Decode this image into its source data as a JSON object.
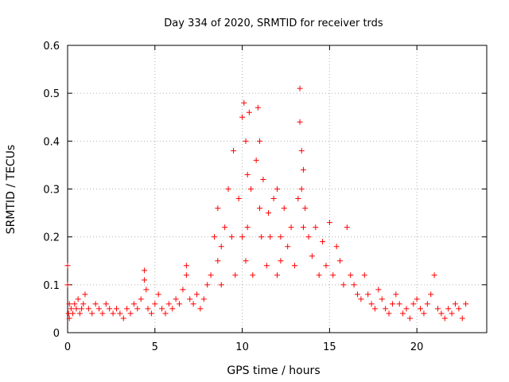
{
  "chart_data": {
    "type": "scatter",
    "title": "Day 334 of 2020, SRMTID for receiver trds",
    "xlabel": "GPS time / hours",
    "ylabel": "SRMTID / TECUs",
    "xlim": [
      0,
      24
    ],
    "ylim": [
      0,
      0.6
    ],
    "x_ticks": [
      0,
      5,
      10,
      15,
      20
    ],
    "y_ticks": [
      0,
      0.1,
      0.2,
      0.3,
      0.4,
      0.5,
      0.6
    ],
    "x_tick_labels": [
      "0",
      "5",
      "10",
      "15",
      "20"
    ],
    "y_tick_labels": [
      "0",
      "0.1",
      "0.2",
      "0.3",
      "0.4",
      "0.5",
      "0.6"
    ],
    "grid": true,
    "marker": "+",
    "series": [
      {
        "name": "SRMTID",
        "color": "#ff0000",
        "x": [
          0.0,
          0.0,
          0.05,
          0.1,
          0.1,
          0.2,
          0.3,
          0.4,
          0.5,
          0.6,
          0.7,
          0.8,
          0.9,
          1.0,
          1.2,
          1.4,
          1.6,
          1.8,
          2.0,
          2.2,
          2.4,
          2.6,
          2.8,
          3.0,
          3.2,
          3.4,
          3.6,
          3.8,
          4.0,
          4.2,
          4.4,
          4.4,
          4.5,
          4.6,
          4.8,
          5.0,
          5.2,
          5.4,
          5.6,
          5.8,
          6.0,
          6.2,
          6.4,
          6.6,
          6.8,
          6.8,
          7.0,
          7.2,
          7.4,
          7.6,
          7.8,
          8.0,
          8.2,
          8.4,
          8.6,
          8.6,
          8.8,
          8.8,
          9.0,
          9.2,
          9.4,
          9.5,
          9.6,
          9.8,
          10.0,
          10.0,
          10.1,
          10.2,
          10.2,
          10.3,
          10.3,
          10.4,
          10.5,
          10.6,
          10.8,
          10.9,
          11.0,
          11.0,
          11.1,
          11.2,
          11.4,
          11.5,
          11.6,
          11.8,
          12.0,
          12.0,
          12.2,
          12.2,
          12.4,
          12.6,
          12.8,
          13.0,
          13.2,
          13.3,
          13.3,
          13.4,
          13.4,
          13.5,
          13.5,
          13.6,
          13.8,
          14.0,
          14.2,
          14.4,
          14.6,
          14.8,
          15.0,
          15.2,
          15.4,
          15.6,
          15.8,
          16.0,
          16.2,
          16.4,
          16.6,
          16.8,
          17.0,
          17.2,
          17.4,
          17.6,
          17.8,
          18.0,
          18.2,
          18.4,
          18.6,
          18.8,
          19.0,
          19.2,
          19.4,
          19.6,
          19.8,
          20.0,
          20.2,
          20.4,
          20.6,
          20.8,
          21.0,
          21.2,
          21.4,
          21.6,
          21.8,
          22.0,
          22.2,
          22.4,
          22.6,
          22.8
        ],
        "y": [
          0.14,
          0.1,
          0.04,
          0.06,
          0.03,
          0.05,
          0.04,
          0.06,
          0.05,
          0.07,
          0.04,
          0.05,
          0.06,
          0.08,
          0.05,
          0.04,
          0.06,
          0.05,
          0.04,
          0.06,
          0.05,
          0.04,
          0.05,
          0.04,
          0.03,
          0.05,
          0.04,
          0.06,
          0.05,
          0.07,
          0.13,
          0.11,
          0.09,
          0.05,
          0.04,
          0.06,
          0.08,
          0.05,
          0.04,
          0.06,
          0.05,
          0.07,
          0.06,
          0.09,
          0.14,
          0.12,
          0.07,
          0.06,
          0.08,
          0.05,
          0.07,
          0.1,
          0.12,
          0.2,
          0.26,
          0.15,
          0.18,
          0.1,
          0.22,
          0.3,
          0.2,
          0.38,
          0.12,
          0.28,
          0.45,
          0.2,
          0.48,
          0.4,
          0.15,
          0.33,
          0.22,
          0.46,
          0.3,
          0.12,
          0.36,
          0.47,
          0.4,
          0.26,
          0.2,
          0.32,
          0.14,
          0.25,
          0.2,
          0.28,
          0.3,
          0.12,
          0.2,
          0.15,
          0.26,
          0.18,
          0.22,
          0.14,
          0.28,
          0.51,
          0.44,
          0.38,
          0.3,
          0.34,
          0.22,
          0.26,
          0.2,
          0.16,
          0.22,
          0.12,
          0.19,
          0.14,
          0.23,
          0.12,
          0.18,
          0.15,
          0.1,
          0.22,
          0.12,
          0.1,
          0.08,
          0.07,
          0.12,
          0.08,
          0.06,
          0.05,
          0.09,
          0.07,
          0.05,
          0.04,
          0.06,
          0.08,
          0.06,
          0.04,
          0.05,
          0.03,
          0.06,
          0.07,
          0.05,
          0.04,
          0.06,
          0.08,
          0.12,
          0.05,
          0.04,
          0.03,
          0.05,
          0.04,
          0.06,
          0.05,
          0.03,
          0.06
        ]
      }
    ]
  }
}
